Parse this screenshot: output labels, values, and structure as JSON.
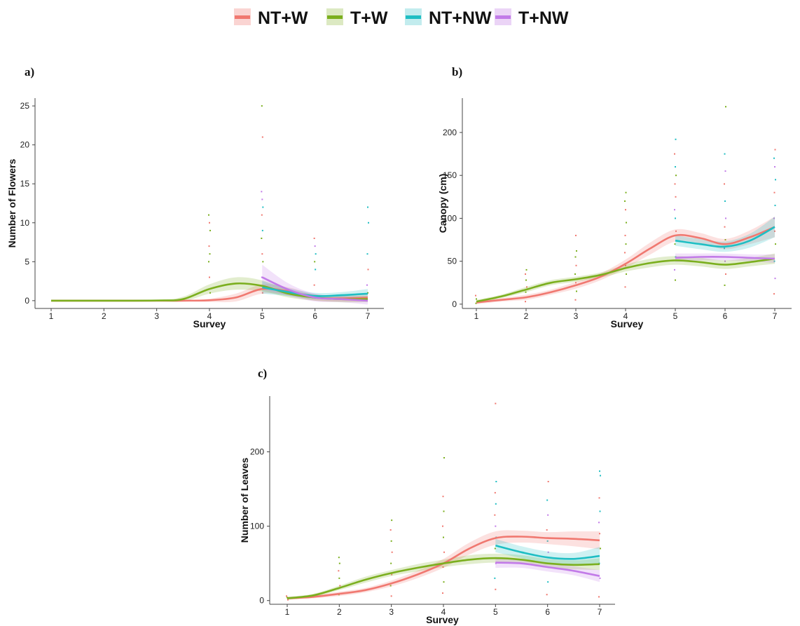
{
  "legend": {
    "entries": [
      {
        "name": "NT+W",
        "color": "#F07870",
        "band_color": "#FAD4D2"
      },
      {
        "name": "T+W",
        "color": "#7BAF1E",
        "band_color": "#DCE9C2"
      },
      {
        "name": "NT+NW",
        "color": "#1FBEC3",
        "band_color": "#C2ECEE"
      },
      {
        "name": "T+NW",
        "color": "#C27BE8",
        "band_color": "#EBD4F6"
      }
    ]
  },
  "chart_data": [
    {
      "panel": "a)",
      "type": "scatter",
      "overlay": "smoothed lines with confidence bands",
      "xlabel": "Survey",
      "ylabel": "Number of Flowers",
      "xlim": [
        1,
        7
      ],
      "ylim": [
        -1,
        26
      ],
      "xticks": [
        1,
        2,
        3,
        4,
        5,
        6,
        7
      ],
      "yticks": [
        0,
        5,
        10,
        15,
        20,
        25
      ],
      "series": [
        {
          "name": "NT+W",
          "x": [
            1,
            2,
            3,
            3.5,
            4,
            4.5,
            5,
            5.5,
            6,
            6.5,
            7
          ],
          "y": [
            0,
            0,
            0,
            0,
            0.05,
            0.4,
            1.5,
            1.2,
            0.4,
            0.3,
            0.4
          ],
          "band": [
            0,
            0,
            0,
            0,
            0.2,
            0.5,
            0.6,
            0.5,
            0.4,
            0.4,
            0.5
          ]
        },
        {
          "name": "T+W",
          "x": [
            1,
            2,
            3,
            3.5,
            4,
            4.5,
            5,
            5.5,
            6,
            6.5,
            7
          ],
          "y": [
            0,
            0,
            0.02,
            0.2,
            1.5,
            2.2,
            1.9,
            0.9,
            0.4,
            0.2,
            0.2
          ],
          "band": [
            0,
            0,
            0.1,
            0.3,
            0.6,
            0.8,
            0.7,
            0.5,
            0.4,
            0.4,
            0.4
          ]
        },
        {
          "name": "NT+NW",
          "x": [
            5,
            5.5,
            6,
            6.5,
            7
          ],
          "y": [
            1.7,
            1.1,
            0.6,
            0.7,
            0.9
          ],
          "band": [
            0.8,
            0.5,
            0.4,
            0.4,
            0.6
          ]
        },
        {
          "name": "T+NW",
          "x": [
            5,
            5.5,
            6,
            6.5,
            7
          ],
          "y": [
            3.0,
            1.4,
            0.4,
            0.2,
            0.0
          ],
          "band": [
            1.6,
            0.8,
            0.5,
            0.4,
            0.5
          ]
        }
      ],
      "points": {
        "x": [
          4,
          4,
          4,
          4,
          4,
          4,
          4,
          4,
          5,
          5,
          5,
          5,
          5,
          5,
          5,
          5,
          5,
          5,
          5,
          5,
          6,
          6,
          6,
          6,
          6,
          6,
          7,
          7,
          7,
          7,
          7,
          7,
          1,
          2,
          3
        ],
        "y": [
          11,
          10,
          9,
          7,
          6,
          5,
          3,
          1,
          25,
          21,
          14,
          13,
          12,
          11,
          9,
          8,
          6,
          5,
          3,
          1,
          8,
          7,
          6,
          5,
          4,
          2,
          12,
          10,
          6,
          4,
          2,
          1,
          0,
          0,
          0
        ],
        "series_index": [
          1,
          0,
          1,
          0,
          1,
          1,
          0,
          1,
          1,
          0,
          3,
          3,
          2,
          0,
          2,
          1,
          0,
          1,
          3,
          0,
          0,
          3,
          2,
          1,
          2,
          0,
          2,
          2,
          2,
          0,
          3,
          1,
          0,
          1,
          0
        ]
      }
    },
    {
      "panel": "b)",
      "type": "scatter",
      "overlay": "smoothed lines with confidence bands",
      "xlabel": "Survey",
      "ylabel": "Canopy (cm)",
      "xlim": [
        1,
        7
      ],
      "ylim": [
        -5,
        240
      ],
      "xticks": [
        1,
        2,
        3,
        4,
        5,
        6,
        7
      ],
      "yticks": [
        0,
        50,
        100,
        150,
        200
      ],
      "series": [
        {
          "name": "NT+W",
          "x": [
            1,
            1.5,
            2,
            2.5,
            3,
            3.5,
            4,
            4.5,
            5,
            5.5,
            6,
            6.5,
            7
          ],
          "y": [
            2,
            5,
            8,
            14,
            22,
            32,
            47,
            65,
            80,
            77,
            70,
            78,
            90
          ],
          "band": [
            2,
            2,
            3,
            3,
            4,
            4,
            5,
            7,
            7,
            6,
            6,
            8,
            12
          ]
        },
        {
          "name": "T+W",
          "x": [
            1,
            1.5,
            2,
            2.5,
            3,
            3.5,
            4,
            4.5,
            5,
            5.5,
            6,
            6.5,
            7
          ],
          "y": [
            3,
            9,
            17,
            25,
            29,
            34,
            42,
            48,
            51,
            49,
            46,
            49,
            53
          ],
          "band": [
            2,
            2,
            3,
            3,
            3,
            3,
            4,
            5,
            5,
            5,
            5,
            5,
            6
          ]
        },
        {
          "name": "NT+NW",
          "x": [
            5,
            5.5,
            6,
            6.5,
            7
          ],
          "y": [
            74,
            70,
            67,
            74,
            90
          ],
          "band": [
            6,
            6,
            6,
            8,
            12
          ]
        },
        {
          "name": "T+NW",
          "x": [
            5,
            5.5,
            6,
            6.5,
            7
          ],
          "y": [
            54,
            55,
            55,
            54,
            53
          ],
          "band": [
            5,
            4,
            4,
            4,
            5
          ]
        }
      ],
      "points": {
        "x": [
          1,
          1,
          1,
          1,
          2,
          2,
          2,
          2,
          2,
          2,
          2,
          3,
          3,
          3,
          3,
          3,
          3,
          3,
          3,
          4,
          4,
          4,
          4,
          4,
          4,
          4,
          4,
          4,
          4,
          5,
          5,
          5,
          5,
          5,
          5,
          5,
          5,
          5,
          5,
          5,
          5,
          5,
          6,
          6,
          6,
          6,
          6,
          6,
          6,
          6,
          6,
          6,
          6,
          6,
          7,
          7,
          7,
          7,
          7,
          7,
          7,
          7,
          7,
          7,
          7,
          7
        ],
        "y": [
          10,
          6,
          3,
          1,
          40,
          35,
          28,
          20,
          14,
          8,
          3,
          80,
          62,
          55,
          45,
          35,
          25,
          15,
          5,
          130,
          120,
          110,
          95,
          80,
          70,
          60,
          45,
          35,
          20,
          192,
          175,
          160,
          150,
          140,
          125,
          110,
          100,
          85,
          70,
          55,
          40,
          28,
          230,
          175,
          155,
          140,
          120,
          100,
          90,
          75,
          65,
          50,
          35,
          22,
          180,
          170,
          160,
          145,
          130,
          115,
          100,
          85,
          70,
          50,
          30,
          12
        ],
        "series_index": [
          0,
          1,
          0,
          1,
          1,
          0,
          1,
          0,
          1,
          1,
          0,
          0,
          1,
          1,
          0,
          1,
          0,
          1,
          0,
          1,
          1,
          0,
          1,
          0,
          1,
          0,
          0,
          1,
          0,
          2,
          0,
          2,
          1,
          0,
          0,
          3,
          2,
          0,
          1,
          2,
          3,
          1,
          1,
          2,
          3,
          0,
          2,
          3,
          0,
          1,
          2,
          3,
          0,
          1,
          0,
          2,
          3,
          2,
          0,
          2,
          3,
          0,
          1,
          2,
          3,
          0
        ]
      }
    },
    {
      "panel": "c)",
      "type": "scatter",
      "overlay": "smoothed lines with confidence bands",
      "xlabel": "Survey",
      "ylabel": "Number of Leaves",
      "xlim": [
        1,
        7
      ],
      "ylim": [
        -5,
        275
      ],
      "xticks": [
        1,
        2,
        3,
        4,
        5,
        6,
        7
      ],
      "yticks": [
        0,
        100,
        200
      ],
      "series": [
        {
          "name": "NT+W",
          "x": [
            1,
            1.5,
            2,
            2.5,
            3,
            3.5,
            4,
            4.5,
            5,
            5.5,
            6,
            6.5,
            7
          ],
          "y": [
            3,
            5,
            9,
            14,
            23,
            35,
            50,
            70,
            84,
            86,
            84,
            83,
            81
          ],
          "band": [
            2,
            2,
            3,
            3,
            4,
            5,
            6,
            8,
            9,
            8,
            8,
            10,
            12
          ]
        },
        {
          "name": "T+W",
          "x": [
            1,
            1.5,
            2,
            2.5,
            3,
            3.5,
            4,
            4.5,
            5,
            5.5,
            6,
            6.5,
            7
          ],
          "y": [
            3,
            7,
            17,
            28,
            37,
            44,
            50,
            55,
            57,
            55,
            50,
            48,
            49
          ],
          "band": [
            2,
            2,
            3,
            4,
            4,
            5,
            5,
            6,
            6,
            6,
            6,
            6,
            8
          ]
        },
        {
          "name": "NT+NW",
          "x": [
            5,
            5.5,
            6,
            6.5,
            7
          ],
          "y": [
            74,
            65,
            58,
            56,
            60
          ],
          "band": [
            9,
            8,
            8,
            8,
            12
          ]
        },
        {
          "name": "T+NW",
          "x": [
            5,
            5.5,
            6,
            6.5,
            7
          ],
          "y": [
            51,
            50,
            45,
            40,
            33
          ],
          "band": [
            7,
            6,
            6,
            6,
            8
          ]
        }
      ],
      "points": {
        "x": [
          1,
          1,
          1,
          2,
          2,
          2,
          2,
          2,
          2,
          3,
          3,
          3,
          3,
          3,
          3,
          3,
          3,
          4,
          4,
          4,
          4,
          4,
          4,
          4,
          4,
          4,
          5,
          5,
          5,
          5,
          5,
          5,
          5,
          5,
          5,
          5,
          5,
          6,
          6,
          6,
          6,
          6,
          6,
          6,
          6,
          6,
          7,
          7,
          7,
          7,
          7,
          7,
          7,
          7,
          7,
          7
        ],
        "y": [
          6,
          4,
          1,
          58,
          50,
          40,
          30,
          20,
          8,
          108,
          95,
          80,
          65,
          50,
          35,
          20,
          6,
          192,
          140,
          120,
          100,
          85,
          65,
          45,
          25,
          10,
          265,
          160,
          145,
          130,
          115,
          100,
          85,
          70,
          50,
          30,
          15,
          160,
          135,
          115,
          95,
          80,
          65,
          45,
          25,
          8,
          174,
          168,
          138,
          120,
          105,
          90,
          70,
          50,
          30,
          5
        ],
        "series_index": [
          0,
          1,
          0,
          1,
          1,
          0,
          1,
          0,
          1,
          1,
          0,
          1,
          0,
          1,
          0,
          1,
          0,
          1,
          0,
          1,
          0,
          1,
          0,
          0,
          1,
          0,
          0,
          2,
          0,
          2,
          0,
          3,
          2,
          1,
          3,
          2,
          0,
          0,
          2,
          3,
          0,
          2,
          3,
          1,
          2,
          0,
          2,
          2,
          0,
          2,
          3,
          0,
          1,
          2,
          3,
          0
        ]
      }
    }
  ]
}
